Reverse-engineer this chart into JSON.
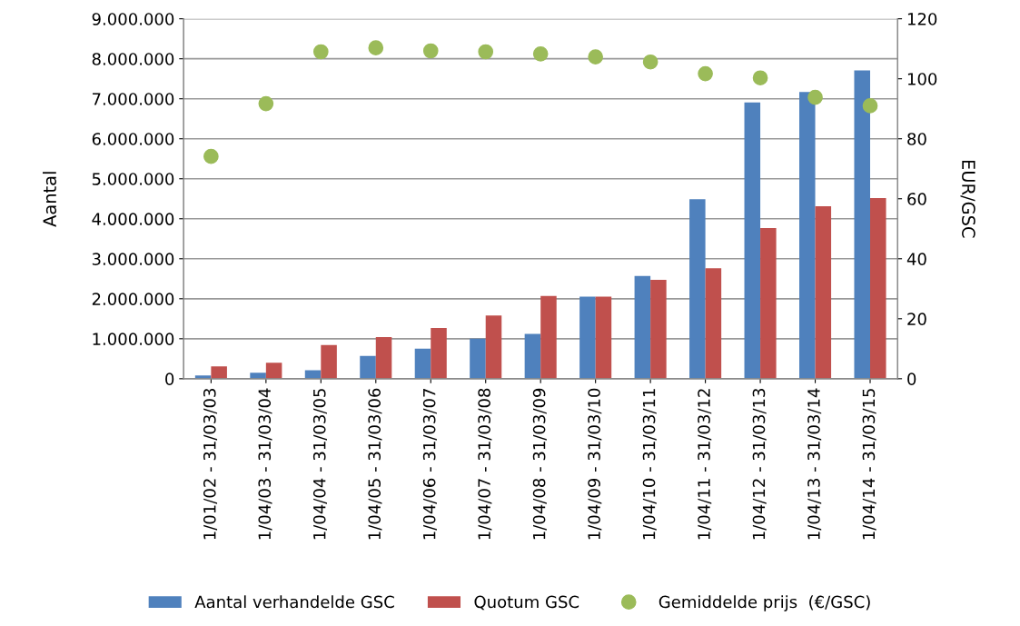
{
  "chart_data": {
    "type": "bar",
    "ylabel": "Aantal",
    "y2label": "EUR/GSC",
    "categories": [
      "1/01/02 - 31/03/03",
      "1/04/03 - 31/03/04",
      "1/04/04 - 31/03/05",
      "1/04/05 - 31/03/06",
      "1/04/06 - 31/03/07",
      "1/04/07 - 31/03/08",
      "1/04/08 - 31/03/09",
      "1/04/09 - 31/03/10",
      "1/04/10 - 31/03/11",
      "1/04/11 - 31/03/12",
      "1/04/12 - 31/03/13",
      "1/04/13 - 31/03/14",
      "1/04/14 - 31/03/15"
    ],
    "series": [
      {
        "name": "Aantal verhandelde GSC",
        "color": "#4f81bd",
        "values": [
          80000,
          150000,
          210000,
          570000,
          750000,
          1000000,
          1120000,
          2050000,
          2570000,
          4490000,
          6910000,
          7170000,
          7710000
        ]
      },
      {
        "name": "Quotum GSC",
        "color": "#c0504d",
        "values": [
          310000,
          400000,
          840000,
          1040000,
          1270000,
          1580000,
          2070000,
          2050000,
          2470000,
          2760000,
          3770000,
          4310000,
          4520000
        ]
      },
      {
        "name": "Gemiddelde prijs  (€/GSC)",
        "color": "#9bbb59",
        "type": "scatter",
        "axis": "y2",
        "marker": "circle",
        "values": [
          74.1,
          91.7,
          109.0,
          110.3,
          109.3,
          109.0,
          108.3,
          107.3,
          105.6,
          101.7,
          100.3,
          93.8,
          91.0
        ]
      }
    ],
    "ylim": [
      0,
      9000000
    ],
    "yticks": [
      {
        "value": 0,
        "label": "0"
      },
      {
        "value": 1000000,
        "label": "1.000.000"
      },
      {
        "value": 2000000,
        "label": "2.000.000"
      },
      {
        "value": 3000000,
        "label": "3.000.000"
      },
      {
        "value": 4000000,
        "label": "4.000.000"
      },
      {
        "value": 5000000,
        "label": "5.000.000"
      },
      {
        "value": 6000000,
        "label": "6.000.000"
      },
      {
        "value": 7000000,
        "label": "7.000.000"
      },
      {
        "value": 8000000,
        "label": "8.000.000"
      },
      {
        "value": 9000000,
        "label": "9.000.000"
      }
    ],
    "y2lim": [
      0,
      120
    ],
    "y2ticks": [
      0,
      20,
      40,
      60,
      80,
      100,
      120
    ],
    "grid": "y",
    "legend": "bottom"
  }
}
